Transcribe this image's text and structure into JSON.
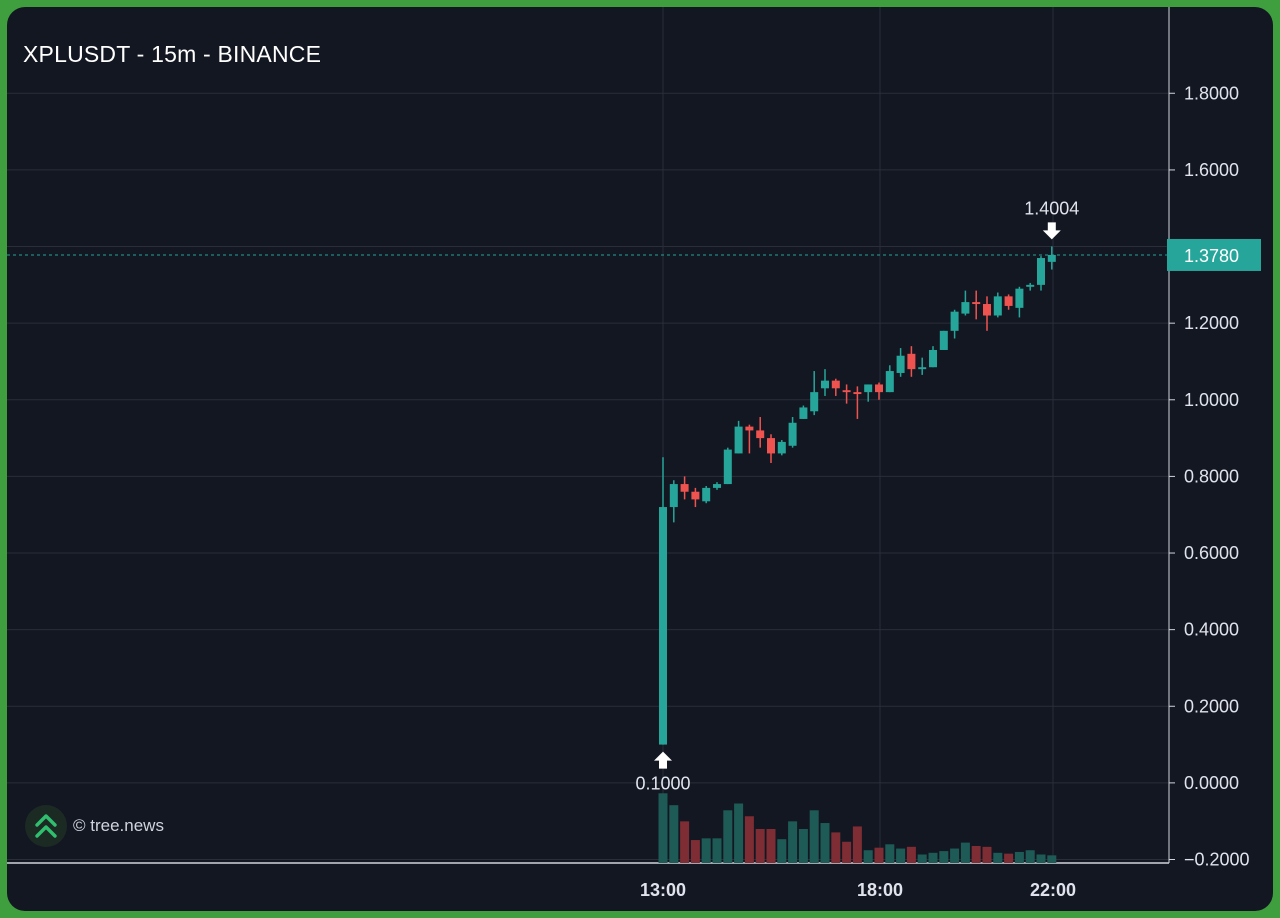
{
  "header": {
    "title": "XPLUSDT - 15m - BINANCE"
  },
  "brand": {
    "text": "© tree.news",
    "icon": "double-chevron-up-icon"
  },
  "colors": {
    "background": "#131722",
    "frame": "#3f9f3e",
    "up": "#26a69a",
    "down": "#ef5350",
    "volume_up": "#1e5b57",
    "volume_down": "#7d2d33",
    "grid": "#2a2e39",
    "text": "#d1d4dc",
    "price_line": "#26a69a"
  },
  "chart_data": {
    "type": "candlestick",
    "title": "XPLUSDT - 15m - BINANCE",
    "ylim": [
      -0.2,
      1.9
    ],
    "y_ticks": [
      "1.8000",
      "1.6000",
      "1.4000",
      "1.2000",
      "1.0000",
      "0.8000",
      "0.6000",
      "0.4000",
      "0.2000",
      "0.0000",
      "−0.2000"
    ],
    "x_ticks": [
      "13:00",
      "18:00",
      "22:00"
    ],
    "grid": true,
    "current_price": {
      "label": "1.3780",
      "value": 1.378
    },
    "high_marker": {
      "label": "1.4004",
      "value": 1.4004
    },
    "low_marker": {
      "label": "0.1000",
      "value": 0.1
    },
    "candles": [
      {
        "o": 0.1,
        "h": 0.85,
        "l": 0.1,
        "c": 0.72
      },
      {
        "o": 0.72,
        "h": 0.79,
        "l": 0.68,
        "c": 0.78
      },
      {
        "o": 0.78,
        "h": 0.8,
        "l": 0.74,
        "c": 0.76
      },
      {
        "o": 0.76,
        "h": 0.77,
        "l": 0.72,
        "c": 0.74
      },
      {
        "o": 0.735,
        "h": 0.775,
        "l": 0.73,
        "c": 0.77
      },
      {
        "o": 0.77,
        "h": 0.785,
        "l": 0.765,
        "c": 0.78
      },
      {
        "o": 0.78,
        "h": 0.875,
        "l": 0.78,
        "c": 0.87
      },
      {
        "o": 0.86,
        "h": 0.945,
        "l": 0.86,
        "c": 0.93
      },
      {
        "o": 0.93,
        "h": 0.935,
        "l": 0.86,
        "c": 0.92
      },
      {
        "o": 0.92,
        "h": 0.955,
        "l": 0.875,
        "c": 0.9
      },
      {
        "o": 0.9,
        "h": 0.91,
        "l": 0.835,
        "c": 0.86
      },
      {
        "o": 0.86,
        "h": 0.895,
        "l": 0.855,
        "c": 0.89
      },
      {
        "o": 0.88,
        "h": 0.955,
        "l": 0.875,
        "c": 0.94
      },
      {
        "o": 0.95,
        "h": 0.985,
        "l": 0.95,
        "c": 0.98
      },
      {
        "o": 0.97,
        "h": 1.075,
        "l": 0.96,
        "c": 1.02
      },
      {
        "o": 1.03,
        "h": 1.08,
        "l": 1.01,
        "c": 1.05
      },
      {
        "o": 1.05,
        "h": 1.055,
        "l": 1.01,
        "c": 1.03
      },
      {
        "o": 1.025,
        "h": 1.04,
        "l": 0.99,
        "c": 1.02
      },
      {
        "o": 1.02,
        "h": 1.035,
        "l": 0.95,
        "c": 1.015
      },
      {
        "o": 1.02,
        "h": 1.04,
        "l": 0.995,
        "c": 1.04
      },
      {
        "o": 1.04,
        "h": 1.045,
        "l": 1.0,
        "c": 1.02
      },
      {
        "o": 1.02,
        "h": 1.09,
        "l": 1.02,
        "c": 1.075
      },
      {
        "o": 1.07,
        "h": 1.135,
        "l": 1.06,
        "c": 1.115
      },
      {
        "o": 1.12,
        "h": 1.14,
        "l": 1.06,
        "c": 1.08
      },
      {
        "o": 1.08,
        "h": 1.11,
        "l": 1.065,
        "c": 1.085
      },
      {
        "o": 1.085,
        "h": 1.14,
        "l": 1.085,
        "c": 1.13
      },
      {
        "o": 1.13,
        "h": 1.18,
        "l": 1.13,
        "c": 1.18
      },
      {
        "o": 1.18,
        "h": 1.235,
        "l": 1.16,
        "c": 1.23
      },
      {
        "o": 1.225,
        "h": 1.285,
        "l": 1.22,
        "c": 1.255
      },
      {
        "o": 1.255,
        "h": 1.285,
        "l": 1.21,
        "c": 1.25
      },
      {
        "o": 1.25,
        "h": 1.27,
        "l": 1.18,
        "c": 1.22
      },
      {
        "o": 1.22,
        "h": 1.28,
        "l": 1.215,
        "c": 1.27
      },
      {
        "o": 1.27,
        "h": 1.275,
        "l": 1.235,
        "c": 1.245
      },
      {
        "o": 1.24,
        "h": 1.295,
        "l": 1.215,
        "c": 1.29
      },
      {
        "o": 1.295,
        "h": 1.305,
        "l": 1.285,
        "c": 1.3
      },
      {
        "o": 1.3,
        "h": 1.375,
        "l": 1.285,
        "c": 1.37
      },
      {
        "o": 1.36,
        "h": 1.4004,
        "l": 1.34,
        "c": 1.378
      }
    ],
    "volume": [
      {
        "v": 0.82,
        "up": true
      },
      {
        "v": 0.68,
        "up": true
      },
      {
        "v": 0.49,
        "up": false
      },
      {
        "v": 0.27,
        "up": false
      },
      {
        "v": 0.29,
        "up": true
      },
      {
        "v": 0.29,
        "up": true
      },
      {
        "v": 0.62,
        "up": true
      },
      {
        "v": 0.7,
        "up": true
      },
      {
        "v": 0.55,
        "up": false
      },
      {
        "v": 0.4,
        "up": false
      },
      {
        "v": 0.4,
        "up": false
      },
      {
        "v": 0.28,
        "up": true
      },
      {
        "v": 0.49,
        "up": true
      },
      {
        "v": 0.4,
        "up": true
      },
      {
        "v": 0.62,
        "up": true
      },
      {
        "v": 0.47,
        "up": true
      },
      {
        "v": 0.36,
        "up": false
      },
      {
        "v": 0.25,
        "up": false
      },
      {
        "v": 0.43,
        "up": false
      },
      {
        "v": 0.15,
        "up": true
      },
      {
        "v": 0.18,
        "up": false
      },
      {
        "v": 0.22,
        "up": true
      },
      {
        "v": 0.17,
        "up": true
      },
      {
        "v": 0.19,
        "up": false
      },
      {
        "v": 0.1,
        "up": true
      },
      {
        "v": 0.12,
        "up": true
      },
      {
        "v": 0.14,
        "up": true
      },
      {
        "v": 0.17,
        "up": true
      },
      {
        "v": 0.24,
        "up": true
      },
      {
        "v": 0.2,
        "up": false
      },
      {
        "v": 0.19,
        "up": false
      },
      {
        "v": 0.12,
        "up": true
      },
      {
        "v": 0.11,
        "up": false
      },
      {
        "v": 0.13,
        "up": true
      },
      {
        "v": 0.15,
        "up": true
      },
      {
        "v": 0.1,
        "up": true
      },
      {
        "v": 0.09,
        "up": true
      }
    ]
  }
}
